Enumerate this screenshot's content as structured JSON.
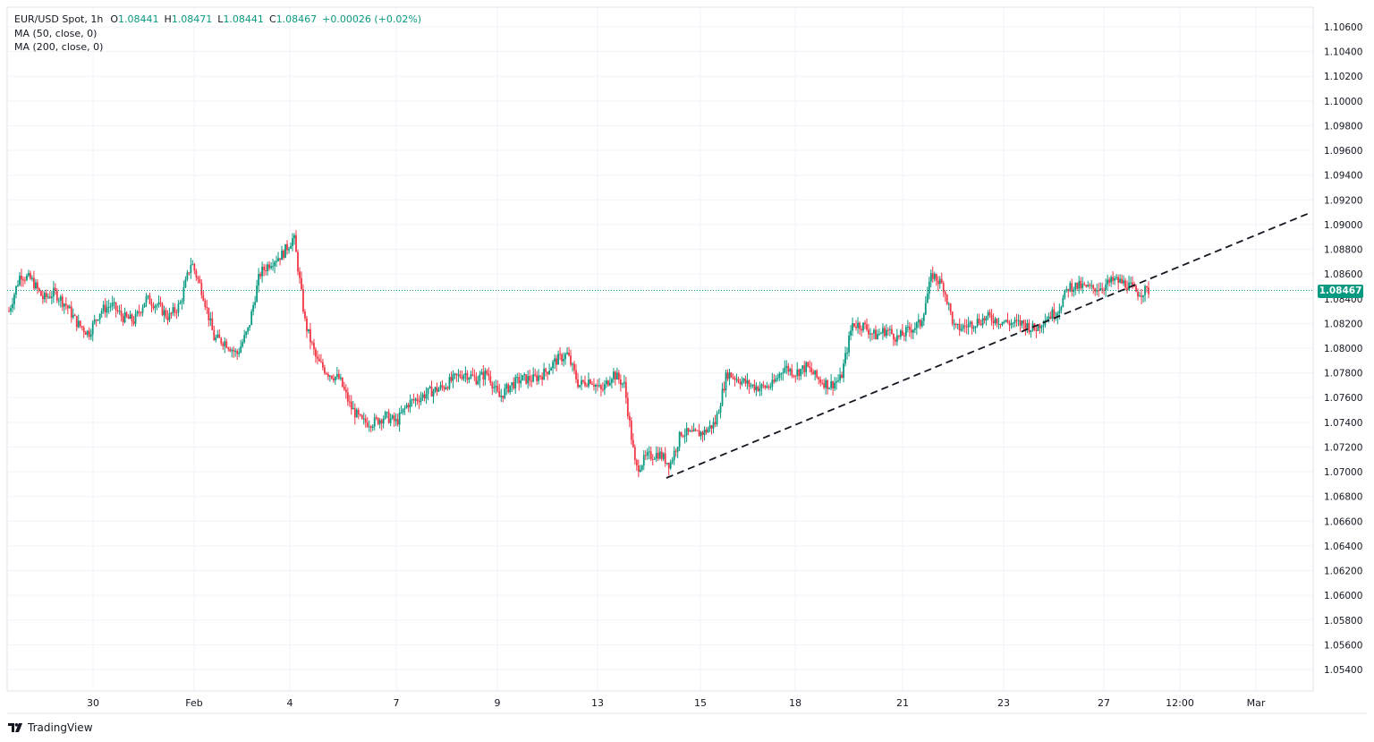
{
  "header": {
    "symbol": "EUR/USD Spot",
    "interval": "1h",
    "ohlc": {
      "o_label": "O",
      "o": "1.08441",
      "h_label": "H",
      "h": "1.08471",
      "l_label": "L",
      "l": "1.08441",
      "c_label": "C",
      "c": "1.08467",
      "change": "+0.00026 (+0.02%)"
    },
    "indicators": [
      "MA (50, close, 0)",
      "MA (200, close, 0)"
    ]
  },
  "branding": {
    "logo_text": "TradingView"
  },
  "colors": {
    "up": "#089981",
    "down": "#f23645",
    "grid": "#f0f3fa",
    "trendline": "#131722",
    "last_price": "#089981"
  },
  "last_price": "1.08467",
  "chart_data": {
    "type": "candlestick",
    "title": "EUR/USD Spot, 1h",
    "y_ticks": [
      "1.10600",
      "1.10400",
      "1.10200",
      "1.10000",
      "1.09800",
      "1.09600",
      "1.09400",
      "1.09200",
      "1.09000",
      "1.08800",
      "1.08600",
      "1.08400",
      "1.08200",
      "1.08000",
      "1.07800",
      "1.07600",
      "1.07400",
      "1.07200",
      "1.07000",
      "1.06800",
      "1.06600",
      "1.06400",
      "1.06200",
      "1.06000",
      "1.05800",
      "1.05600",
      "1.05400"
    ],
    "ylim": [
      1.053,
      1.1075
    ],
    "x_ticks": [
      "30",
      "Feb",
      "4",
      "7",
      "9",
      "13",
      "15",
      "18",
      "21",
      "23",
      "27",
      "12:00",
      "Mar"
    ],
    "grid": true,
    "approx_close_path": [
      [
        0,
        1.083
      ],
      [
        1,
        1.086
      ],
      [
        2,
        1.0855
      ],
      [
        3,
        1.084
      ],
      [
        4,
        1.0845
      ],
      [
        5,
        1.0835
      ],
      [
        6,
        1.082
      ],
      [
        7,
        1.0812
      ],
      [
        8,
        1.083
      ],
      [
        9,
        1.0835
      ],
      [
        10,
        1.0825
      ],
      [
        11,
        1.0822
      ],
      [
        12,
        1.084
      ],
      [
        13,
        1.0835
      ],
      [
        14,
        1.0825
      ],
      [
        15,
        1.0835
      ],
      [
        16,
        1.087
      ],
      [
        17,
        1.0845
      ],
      [
        18,
        1.0808
      ],
      [
        19,
        1.0805
      ],
      [
        20,
        1.0795
      ],
      [
        21,
        1.0815
      ],
      [
        22,
        1.086
      ],
      [
        23,
        1.087
      ],
      [
        24,
        1.0876
      ],
      [
        25,
        1.089
      ],
      [
        26,
        1.082
      ],
      [
        27,
        1.079
      ],
      [
        28,
        1.078
      ],
      [
        29,
        1.0775
      ],
      [
        30,
        1.0752
      ],
      [
        31,
        1.074
      ],
      [
        32,
        1.074
      ],
      [
        33,
        1.0745
      ],
      [
        34,
        1.074
      ],
      [
        35,
        1.0755
      ],
      [
        36,
        1.076
      ],
      [
        37,
        1.0765
      ],
      [
        38,
        1.0768
      ],
      [
        39,
        1.0775
      ],
      [
        40,
        1.078
      ],
      [
        41,
        1.0775
      ],
      [
        42,
        1.078
      ],
      [
        43,
        1.076
      ],
      [
        44,
        1.077
      ],
      [
        45,
        1.0775
      ],
      [
        46,
        1.0775
      ],
      [
        47,
        1.078
      ],
      [
        48,
        1.079
      ],
      [
        49,
        1.0795
      ],
      [
        50,
        1.077
      ],
      [
        51,
        1.0775
      ],
      [
        52,
        1.0765
      ],
      [
        53,
        1.078
      ],
      [
        54,
        1.077
      ],
      [
        55,
        1.0702
      ],
      [
        56,
        1.0712
      ],
      [
        57,
        1.0715
      ],
      [
        58,
        1.0706
      ],
      [
        59,
        1.0732
      ],
      [
        60,
        1.073
      ],
      [
        61,
        1.0732
      ],
      [
        62,
        1.074
      ],
      [
        63,
        1.078
      ],
      [
        64,
        1.0775
      ],
      [
        65,
        1.077
      ],
      [
        66,
        1.0768
      ],
      [
        67,
        1.077
      ],
      [
        68,
        1.0785
      ],
      [
        69,
        1.078
      ],
      [
        70,
        1.0785
      ],
      [
        71,
        1.0775
      ],
      [
        72,
        1.077
      ],
      [
        73,
        1.0775
      ],
      [
        74,
        1.082
      ],
      [
        75,
        1.0818
      ],
      [
        76,
        1.081
      ],
      [
        77,
        1.0815
      ],
      [
        78,
        1.0808
      ],
      [
        79,
        1.0815
      ],
      [
        80,
        1.082
      ],
      [
        81,
        1.086
      ],
      [
        82,
        1.085
      ],
      [
        83,
        1.0815
      ],
      [
        84,
        1.0818
      ],
      [
        85,
        1.0822
      ],
      [
        86,
        1.0825
      ],
      [
        87,
        1.0822
      ],
      [
        88,
        1.082
      ],
      [
        89,
        1.082
      ],
      [
        90,
        1.0815
      ],
      [
        91,
        1.0825
      ],
      [
        92,
        1.083
      ],
      [
        93,
        1.085
      ],
      [
        94,
        1.085
      ],
      [
        95,
        1.0848
      ],
      [
        96,
        1.085
      ],
      [
        97,
        1.0855
      ],
      [
        98,
        1.0852
      ],
      [
        99,
        1.0845
      ],
      [
        100,
        1.08467
      ]
    ],
    "trendline": {
      "from": [
        "14 Feb",
        1.0695
      ],
      "to": [
        "beyond 12:00",
        1.091
      ],
      "style": "dashed"
    },
    "last_value": 1.08467
  }
}
